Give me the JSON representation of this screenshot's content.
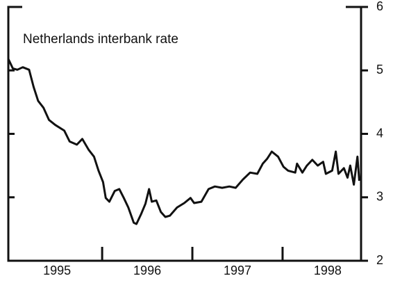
{
  "chart_data": {
    "type": "line",
    "title": "Netherlands interbank rate",
    "x": [
      1994.96,
      1995.01,
      1995.06,
      1995.12,
      1995.19,
      1995.24,
      1995.29,
      1995.35,
      1995.41,
      1995.48,
      1995.58,
      1995.64,
      1995.72,
      1995.78,
      1995.85,
      1995.91,
      1995.96,
      1996.01,
      1996.04,
      1996.08,
      1996.14,
      1996.19,
      1996.24,
      1996.29,
      1996.35,
      1996.38,
      1996.43,
      1996.48,
      1996.52,
      1996.55,
      1996.6,
      1996.65,
      1996.7,
      1996.75,
      1996.83,
      1996.91,
      1996.98,
      1997.02,
      1997.1,
      1997.18,
      1997.25,
      1997.33,
      1997.41,
      1997.48,
      1997.56,
      1997.64,
      1997.72,
      1997.78,
      1997.83,
      1997.88,
      1997.95,
      1998.01,
      1998.06,
      1998.14,
      1998.16,
      1998.22,
      1998.27,
      1998.33,
      1998.39,
      1998.45,
      1998.48,
      1998.55,
      1998.59,
      1998.62,
      1998.68,
      1998.72,
      1998.75,
      1998.79,
      1998.83,
      1998.85
    ],
    "series": [
      {
        "name": "Netherlands interbank rate",
        "color": "#111111",
        "values": [
          5.18,
          5.03,
          5.01,
          5.05,
          5.01,
          4.74,
          4.52,
          4.41,
          4.22,
          4.14,
          4.05,
          3.88,
          3.83,
          3.92,
          3.75,
          3.64,
          3.42,
          3.24,
          2.99,
          2.93,
          3.1,
          3.13,
          2.99,
          2.84,
          2.6,
          2.58,
          2.73,
          2.9,
          3.13,
          2.93,
          2.95,
          2.77,
          2.69,
          2.71,
          2.84,
          2.91,
          2.99,
          2.91,
          2.93,
          3.13,
          3.17,
          3.15,
          3.17,
          3.15,
          3.28,
          3.39,
          3.37,
          3.53,
          3.61,
          3.72,
          3.64,
          3.48,
          3.42,
          3.39,
          3.53,
          3.39,
          3.5,
          3.59,
          3.5,
          3.56,
          3.37,
          3.42,
          3.72,
          3.37,
          3.46,
          3.31,
          3.5,
          3.2,
          3.64,
          3.26
        ]
      }
    ],
    "xlim": [
      1994.96,
      1998.87
    ],
    "xticks": [
      {
        "value": 1995.5,
        "label": "1995"
      },
      {
        "value": 1996.5,
        "label": "1996"
      },
      {
        "value": 1997.5,
        "label": "1997"
      },
      {
        "value": 1998.5,
        "label": "1998"
      }
    ],
    "xminor": [
      1996,
      1997,
      1998
    ],
    "ylim": [
      2,
      6
    ],
    "yticks": [
      2,
      3,
      4,
      5,
      6
    ],
    "y_axis_side": "right"
  }
}
